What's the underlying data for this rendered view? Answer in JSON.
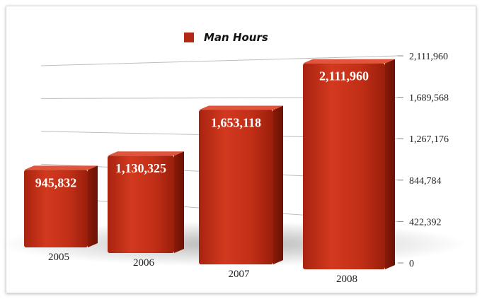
{
  "chart_data": {
    "type": "bar",
    "categories": [
      "2005",
      "2006",
      "2007",
      "2008"
    ],
    "series": [
      {
        "name": "Man Hours",
        "values": [
          945832,
          1130325,
          1653118,
          2111960
        ]
      }
    ],
    "data_labels": [
      "945,832",
      "1,130,325",
      "1,653,118",
      "2,111,960"
    ],
    "y_ticks": [
      "0",
      "422,392",
      "844,784",
      "1,267,176",
      "1,689,568",
      "2,111,960"
    ],
    "ylim": [
      0,
      2111960
    ],
    "legend_position": "top",
    "grid": true,
    "bar_color": "#c2321c"
  }
}
